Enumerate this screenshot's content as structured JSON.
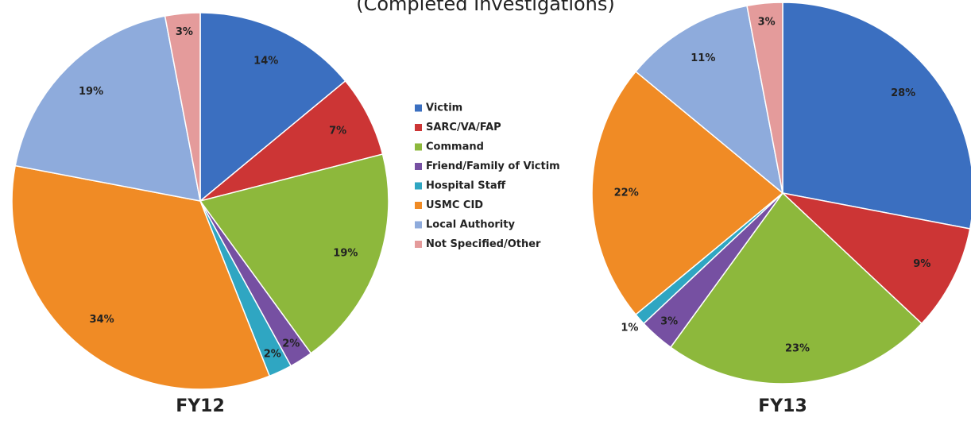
{
  "chart_data": {
    "type": "pie",
    "title": "(Completed Investigations)",
    "categories": [
      "Victim",
      "SARC/VA/FAP",
      "Command",
      "Friend/Family of Victim",
      "Hospital Staff",
      "USMC CID",
      "Local Authority",
      "Not Specified/Other"
    ],
    "colors": [
      "#3b6fc0",
      "#cc3535",
      "#8db83c",
      "#7650a2",
      "#2fa6c2",
      "#f08b25",
      "#8eabdc",
      "#e49b9b"
    ],
    "series": [
      {
        "name": "FY12",
        "values": [
          14,
          7,
          19,
          2,
          2,
          34,
          19,
          3
        ],
        "value_labels": [
          "14%",
          "7%",
          "19%",
          "2%",
          "2%",
          "34%",
          "19%",
          "3%"
        ]
      },
      {
        "name": "FY13",
        "values": [
          28,
          9,
          23,
          3,
          1,
          22,
          11,
          3
        ],
        "value_labels": [
          "28%",
          "9%",
          "23%",
          "3%",
          "1%",
          "22%",
          "11%",
          "3%"
        ]
      }
    ]
  }
}
